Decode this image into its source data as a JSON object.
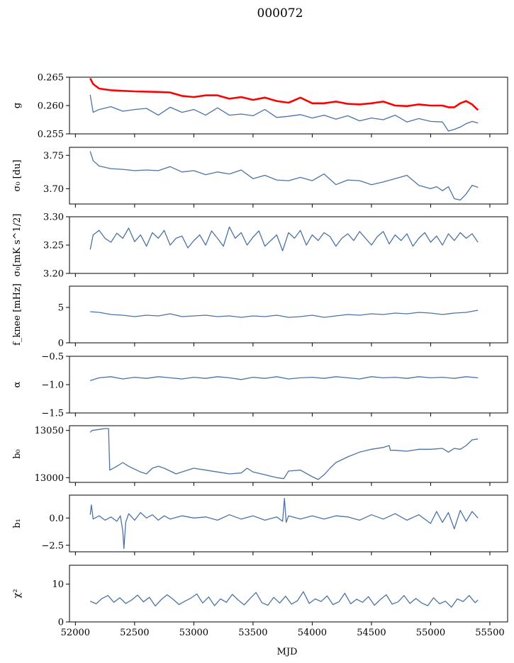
{
  "figure": {
    "title": "000072",
    "xlabel": "MJD"
  },
  "colors": {
    "series": "#4c72a6",
    "highlight": "#ff0000",
    "axis": "#000000"
  },
  "chart_data": [
    {
      "type": "line",
      "panel": "g",
      "ylabel": "g",
      "ylim": [
        0.255,
        0.265
      ],
      "yticks": [
        "0.255",
        "0.260",
        "0.265"
      ],
      "xlim": [
        51950,
        55650
      ],
      "xticks": [
        "52000",
        "52500",
        "53000",
        "53500",
        "54000",
        "54500",
        "55000",
        "55500"
      ],
      "show_xtick_labels": false,
      "series": [
        {
          "color": "highlight",
          "x": [
            52125,
            52150,
            52200,
            52300,
            52500,
            52700,
            52800,
            52900,
            53000,
            53100,
            53200,
            53300,
            53400,
            53500,
            53600,
            53700,
            53800,
            53900,
            54000,
            54100,
            54200,
            54300,
            54400,
            54500,
            54600,
            54700,
            54800,
            54900,
            55000,
            55100,
            55150,
            55200,
            55250,
            55300,
            55350,
            55400
          ],
          "values": [
            0.2648,
            0.2638,
            0.263,
            0.2627,
            0.2625,
            0.2624,
            0.2623,
            0.2617,
            0.2615,
            0.2618,
            0.2618,
            0.2612,
            0.2615,
            0.261,
            0.2614,
            0.2608,
            0.2605,
            0.2614,
            0.2604,
            0.2604,
            0.2607,
            0.2603,
            0.2602,
            0.2604,
            0.2607,
            0.26,
            0.2599,
            0.2602,
            0.26,
            0.26,
            0.2597,
            0.2597,
            0.2604,
            0.2608,
            0.2602,
            0.2592
          ]
        },
        {
          "color": "series",
          "x": [
            52125,
            52150,
            52200,
            52300,
            52400,
            52500,
            52600,
            52700,
            52800,
            52900,
            53000,
            53100,
            53200,
            53300,
            53400,
            53500,
            53600,
            53700,
            53800,
            53900,
            54000,
            54100,
            54200,
            54300,
            54400,
            54500,
            54600,
            54700,
            54800,
            54900,
            55000,
            55100,
            55150,
            55200,
            55250,
            55300,
            55350,
            55400
          ],
          "values": [
            0.2619,
            0.2588,
            0.2593,
            0.2598,
            0.259,
            0.2593,
            0.2595,
            0.2583,
            0.2597,
            0.2588,
            0.2593,
            0.2583,
            0.2596,
            0.2583,
            0.2585,
            0.2582,
            0.2593,
            0.2579,
            0.2581,
            0.2584,
            0.2578,
            0.2583,
            0.2576,
            0.2582,
            0.2573,
            0.2578,
            0.2575,
            0.2583,
            0.2571,
            0.2577,
            0.2572,
            0.2571,
            0.2555,
            0.2558,
            0.2562,
            0.2568,
            0.2572,
            0.2569
          ]
        }
      ]
    },
    {
      "type": "line",
      "panel": "sigma0-du",
      "ylabel": "σ₀ [du]",
      "ylim": [
        3.677,
        3.762
      ],
      "yticks": [
        "3.70",
        "3.75"
      ],
      "xlim": [
        51950,
        55650
      ],
      "show_xtick_labels": false,
      "series": [
        {
          "color": "series",
          "x": [
            52125,
            52150,
            52200,
            52300,
            52400,
            52500,
            52600,
            52700,
            52800,
            52900,
            53000,
            53100,
            53200,
            53300,
            53400,
            53500,
            53600,
            53700,
            53800,
            53900,
            54000,
            54100,
            54200,
            54300,
            54400,
            54500,
            54600,
            54700,
            54800,
            54900,
            55000,
            55050,
            55100,
            55150,
            55200,
            55250,
            55300,
            55350,
            55400
          ],
          "values": [
            3.756,
            3.742,
            3.734,
            3.73,
            3.729,
            3.727,
            3.728,
            3.727,
            3.733,
            3.725,
            3.727,
            3.721,
            3.725,
            3.722,
            3.728,
            3.715,
            3.72,
            3.713,
            3.712,
            3.717,
            3.712,
            3.722,
            3.706,
            3.713,
            3.712,
            3.706,
            3.71,
            3.715,
            3.72,
            3.705,
            3.7,
            3.703,
            3.697,
            3.703,
            3.685,
            3.683,
            3.692,
            3.705,
            3.702
          ]
        }
      ]
    },
    {
      "type": "line",
      "panel": "sigma0-mk",
      "ylabel": "σ₀[mK s^1/2]",
      "ylim": [
        3.2,
        3.3
      ],
      "yticks": [
        "3.20",
        "3.25",
        "3.30"
      ],
      "xlim": [
        51950,
        55650
      ],
      "show_xtick_labels": false,
      "series": [
        {
          "color": "series",
          "x": [
            52125,
            52150,
            52200,
            52250,
            52300,
            52350,
            52400,
            52450,
            52500,
            52550,
            52600,
            52650,
            52700,
            52750,
            52800,
            52850,
            52900,
            52950,
            53000,
            53050,
            53100,
            53150,
            53200,
            53250,
            53300,
            53350,
            53400,
            53450,
            53500,
            53550,
            53600,
            53650,
            53700,
            53750,
            53800,
            53850,
            53900,
            53950,
            54000,
            54050,
            54100,
            54150,
            54200,
            54250,
            54300,
            54350,
            54400,
            54450,
            54500,
            54550,
            54600,
            54650,
            54700,
            54750,
            54800,
            54850,
            54900,
            54950,
            55000,
            55050,
            55100,
            55150,
            55200,
            55250,
            55300,
            55350,
            55400
          ],
          "values": [
            3.242,
            3.268,
            3.276,
            3.262,
            3.255,
            3.271,
            3.262,
            3.28,
            3.256,
            3.268,
            3.248,
            3.272,
            3.262,
            3.276,
            3.25,
            3.262,
            3.266,
            3.245,
            3.258,
            3.268,
            3.25,
            3.275,
            3.262,
            3.248,
            3.282,
            3.262,
            3.272,
            3.25,
            3.264,
            3.275,
            3.248,
            3.258,
            3.268,
            3.24,
            3.272,
            3.262,
            3.276,
            3.25,
            3.268,
            3.258,
            3.272,
            3.265,
            3.248,
            3.262,
            3.27,
            3.258,
            3.274,
            3.262,
            3.25,
            3.265,
            3.274,
            3.252,
            3.268,
            3.258,
            3.27,
            3.248,
            3.262,
            3.272,
            3.255,
            3.266,
            3.25,
            3.27,
            3.258,
            3.272,
            3.262,
            3.27,
            3.255
          ]
        }
      ]
    },
    {
      "type": "line",
      "panel": "fknee",
      "ylabel": "f_knee [mHz]",
      "ylim": [
        0,
        8
      ],
      "yticks": [
        "0",
        "5"
      ],
      "xlim": [
        51950,
        55650
      ],
      "show_xtick_labels": false,
      "series": [
        {
          "color": "series",
          "x": [
            52125,
            52200,
            52300,
            52400,
            52500,
            52600,
            52700,
            52800,
            52900,
            53000,
            53100,
            53200,
            53300,
            53400,
            53500,
            53600,
            53700,
            53800,
            53900,
            54000,
            54100,
            54200,
            54300,
            54400,
            54500,
            54600,
            54700,
            54800,
            54900,
            55000,
            55100,
            55200,
            55300,
            55400
          ],
          "values": [
            4.4,
            4.3,
            4.0,
            3.9,
            3.7,
            3.9,
            3.8,
            4.1,
            3.7,
            3.8,
            3.9,
            3.7,
            3.8,
            3.6,
            3.8,
            3.7,
            3.9,
            3.6,
            3.7,
            3.9,
            3.6,
            3.8,
            4.0,
            3.9,
            4.1,
            4.0,
            4.2,
            4.1,
            4.3,
            4.2,
            4.0,
            4.2,
            4.3,
            4.6
          ]
        }
      ]
    },
    {
      "type": "line",
      "panel": "alpha",
      "ylabel": "α",
      "ylim": [
        -1.5,
        -0.5
      ],
      "yticks": [
        "−1.5",
        "−1.0",
        "−0.5"
      ],
      "xlim": [
        51950,
        55650
      ],
      "show_xtick_labels": false,
      "series": [
        {
          "color": "series",
          "x": [
            52125,
            52200,
            52300,
            52400,
            52500,
            52600,
            52700,
            52800,
            52900,
            53000,
            53100,
            53200,
            53300,
            53400,
            53500,
            53600,
            53700,
            53800,
            53900,
            54000,
            54100,
            54200,
            54300,
            54400,
            54500,
            54600,
            54700,
            54800,
            54900,
            55000,
            55100,
            55200,
            55300,
            55400
          ],
          "values": [
            -0.93,
            -0.88,
            -0.86,
            -0.9,
            -0.87,
            -0.89,
            -0.86,
            -0.88,
            -0.9,
            -0.87,
            -0.89,
            -0.86,
            -0.88,
            -0.91,
            -0.87,
            -0.89,
            -0.86,
            -0.9,
            -0.88,
            -0.87,
            -0.89,
            -0.86,
            -0.88,
            -0.9,
            -0.86,
            -0.88,
            -0.87,
            -0.89,
            -0.86,
            -0.88,
            -0.87,
            -0.89,
            -0.86,
            -0.88
          ]
        }
      ]
    },
    {
      "type": "line",
      "panel": "b0",
      "ylabel": "b₀",
      "ylim": [
        12995,
        13055
      ],
      "yticks": [
        "13000",
        "13050"
      ],
      "xlim": [
        51950,
        55650
      ],
      "show_xtick_labels": false,
      "series": [
        {
          "color": "series",
          "x": [
            52125,
            52140,
            52200,
            52250,
            52280,
            52290,
            52350,
            52400,
            52450,
            52550,
            52600,
            52650,
            52700,
            52750,
            52800,
            52850,
            52900,
            53000,
            53100,
            53200,
            53300,
            53400,
            53450,
            53500,
            53600,
            53700,
            53760,
            53800,
            53900,
            54000,
            54050,
            54100,
            54150,
            54200,
            54300,
            54400,
            54500,
            54600,
            54650,
            54660,
            54700,
            54800,
            54900,
            55000,
            55100,
            55150,
            55200,
            55250,
            55300,
            55350,
            55400
          ],
          "values": [
            13048,
            13050,
            13051,
            13052,
            13052,
            13008,
            13012,
            13016,
            13012,
            13006,
            13004,
            13010,
            13012,
            13010,
            13007,
            13004,
            13006,
            13010,
            13008,
            13006,
            13004,
            13005,
            13010,
            13006,
            13003,
            13000,
            12999,
            13007,
            13008,
            13001,
            12998,
            13003,
            13010,
            13016,
            13022,
            13027,
            13030,
            13032,
            13034,
            13029,
            13029,
            13028,
            13030,
            13030,
            13031,
            13027,
            13031,
            13030,
            13034,
            13040,
            13041
          ]
        }
      ]
    },
    {
      "type": "line",
      "panel": "b1",
      "ylabel": "b₁",
      "ylim": [
        -3.1,
        2.1
      ],
      "yticks": [
        "−2.5",
        "0.0"
      ],
      "xlim": [
        51950,
        55650
      ],
      "show_xtick_labels": false,
      "series": [
        {
          "color": "series",
          "x": [
            52125,
            52135,
            52150,
            52200,
            52250,
            52300,
            52350,
            52380,
            52400,
            52410,
            52425,
            52450,
            52500,
            52550,
            52600,
            52650,
            52700,
            52750,
            52800,
            52900,
            53000,
            53100,
            53200,
            53300,
            53400,
            53500,
            53600,
            53700,
            53750,
            53765,
            53780,
            53800,
            53900,
            54000,
            54100,
            54200,
            54300,
            54400,
            54500,
            54600,
            54700,
            54800,
            54900,
            55000,
            55050,
            55100,
            55150,
            55200,
            55250,
            55300,
            55350,
            55400
          ],
          "values": [
            0.3,
            1.2,
            -0.1,
            0.2,
            -0.2,
            0.1,
            -0.3,
            0.2,
            -1.2,
            -2.8,
            -0.4,
            0.4,
            -0.2,
            0.5,
            0.0,
            0.3,
            -0.2,
            0.2,
            -0.1,
            0.2,
            0.0,
            0.1,
            -0.2,
            0.3,
            -0.1,
            0.2,
            -0.2,
            0.1,
            -0.3,
            1.8,
            -0.4,
            0.2,
            -0.1,
            0.2,
            -0.1,
            0.2,
            0.1,
            -0.2,
            0.3,
            -0.1,
            0.4,
            -0.2,
            0.3,
            -0.5,
            0.6,
            -0.4,
            0.5,
            -1.0,
            0.7,
            -0.3,
            0.6,
            0.0
          ]
        }
      ]
    },
    {
      "type": "line",
      "panel": "chi2",
      "ylabel": "χ²",
      "ylim": [
        0,
        15
      ],
      "yticks": [
        "0",
        "10"
      ],
      "xlim": [
        51950,
        55650
      ],
      "show_xtick_labels": true,
      "series": [
        {
          "color": "series",
          "x": [
            52125,
            52175,
            52225,
            52275,
            52325,
            52375,
            52425,
            52475,
            52525,
            52575,
            52625,
            52675,
            52725,
            52775,
            52825,
            52875,
            52925,
            52975,
            53025,
            53075,
            53125,
            53175,
            53225,
            53275,
            53325,
            53375,
            53425,
            53475,
            53525,
            53575,
            53625,
            53675,
            53725,
            53775,
            53825,
            53875,
            53925,
            53975,
            54025,
            54075,
            54125,
            54175,
            54225,
            54275,
            54325,
            54375,
            54425,
            54475,
            54525,
            54575,
            54625,
            54675,
            54725,
            54775,
            54825,
            54875,
            54925,
            54975,
            55025,
            55075,
            55125,
            55175,
            55225,
            55275,
            55325,
            55375,
            55400
          ],
          "values": [
            5.5,
            4.8,
            6.2,
            7.0,
            5.2,
            6.4,
            4.9,
            5.8,
            7.1,
            5.3,
            6.5,
            4.2,
            5.9,
            7.2,
            6.0,
            4.6,
            5.5,
            6.3,
            7.4,
            5.0,
            6.6,
            4.3,
            6.1,
            5.2,
            7.3,
            5.8,
            4.5,
            6.2,
            7.8,
            5.1,
            4.4,
            6.5,
            5.0,
            6.8,
            4.7,
            5.6,
            8.0,
            4.9,
            6.1,
            5.4,
            6.9,
            4.6,
            5.3,
            7.6,
            4.8,
            6.0,
            5.2,
            6.7,
            4.4,
            5.9,
            7.2,
            4.7,
            5.3,
            7.0,
            4.9,
            6.2,
            5.0,
            4.3,
            6.4,
            4.8,
            5.5,
            3.9,
            6.1,
            5.4,
            7.0,
            5.1,
            5.8
          ]
        }
      ]
    }
  ]
}
